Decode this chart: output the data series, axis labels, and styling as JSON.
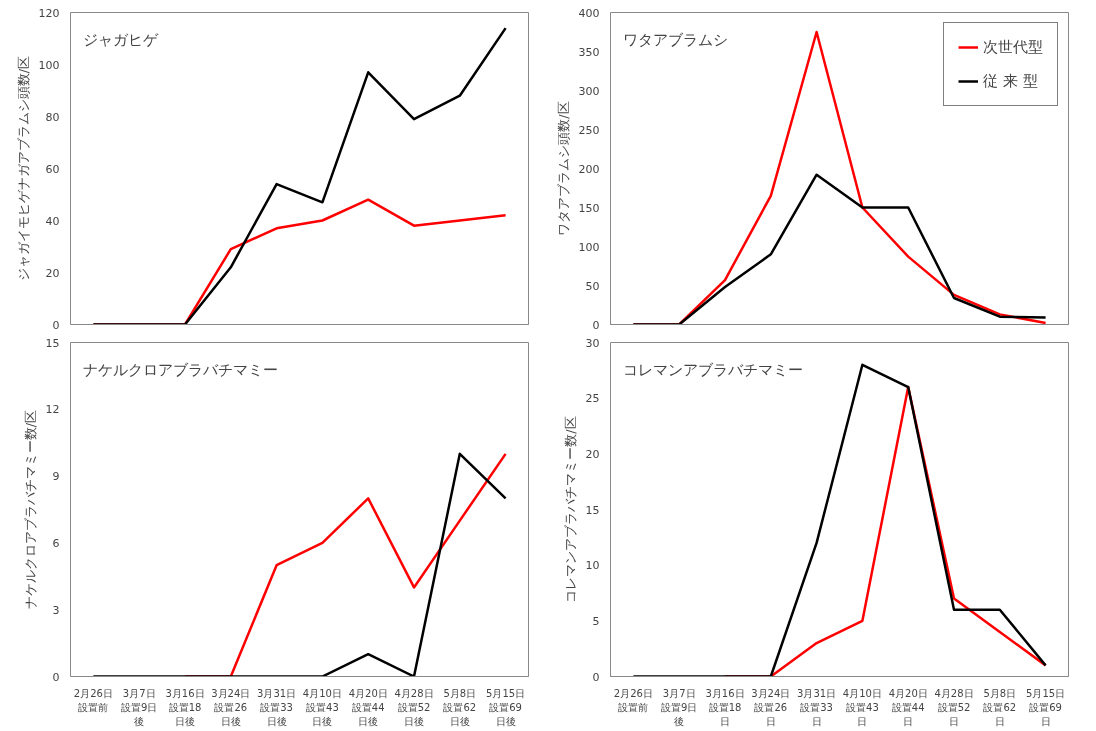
{
  "chart_data": [
    {
      "type": "line",
      "title": "ジャガヒゲ",
      "ylabel": "ジャガイモヒゲナガアブラムシ頭数/区",
      "grid": false,
      "legend": false,
      "ylim": [
        0,
        120
      ],
      "yticks": [
        0,
        20,
        40,
        60,
        80,
        100,
        120
      ],
      "categories": [
        null,
        null,
        null,
        null,
        null,
        null,
        null,
        null,
        null,
        null
      ],
      "series": [
        {
          "color": "#ff0000",
          "values": [
            0,
            0,
            0,
            29,
            37,
            40,
            48,
            38,
            40,
            42
          ]
        },
        {
          "color": "#000000",
          "values": [
            0,
            0,
            0,
            22,
            54,
            47,
            97,
            79,
            88,
            114
          ]
        }
      ]
    },
    {
      "type": "line",
      "title": "ワタアブラムシ",
      "ylabel": "ワタアブラムシ頭数/区",
      "grid": false,
      "legend": "top right",
      "ylim": [
        0,
        400
      ],
      "yticks": [
        0,
        50,
        100,
        150,
        200,
        250,
        300,
        350,
        400
      ],
      "categories": [
        null,
        null,
        null,
        null,
        null,
        null,
        null,
        null,
        null,
        null
      ],
      "series": [
        {
          "name": "次世代型",
          "color": "#ff0000",
          "values": [
            0,
            0,
            57,
            165,
            375,
            150,
            87,
            38,
            13,
            2
          ]
        },
        {
          "name": "従 来 型",
          "color": "#000000",
          "values": [
            0,
            0,
            48,
            90,
            192,
            150,
            150,
            34,
            10,
            9
          ]
        }
      ]
    },
    {
      "type": "line",
      "title": "ナケルクロアブラバチマミー",
      "ylabel": "ナケルクロアブラバチマミー数/区",
      "grid": false,
      "legend": false,
      "ylim": [
        0,
        15
      ],
      "yticks": [
        0,
        3,
        6,
        9,
        12,
        15
      ],
      "categories": [
        "2月26日設置前",
        "3月7日設置9日後",
        "3月16日設置18日後",
        "3月24日設置26日後",
        "3月31日設置33日後",
        "4月10日設置43日後",
        "4月20日設置44日後",
        "4月28日設置52日後",
        "5月8日設置62日後",
        "5月15日設置69日後"
      ],
      "series": [
        {
          "color": "#ff0000",
          "values": [
            null,
            null,
            0,
            0,
            5,
            6,
            8,
            4,
            7,
            10
          ]
        },
        {
          "color": "#000000",
          "values": [
            0,
            0,
            0,
            0,
            0,
            0,
            1,
            0,
            10,
            8
          ]
        }
      ]
    },
    {
      "type": "line",
      "title": "コレマンアブラバチマミー",
      "ylabel": "コレマンアブラバチマミー数/区",
      "grid": false,
      "legend": false,
      "ylim": [
        0,
        30
      ],
      "yticks": [
        0,
        5,
        10,
        15,
        20,
        25,
        30
      ],
      "categories": [
        "2月26日設置前",
        "3月7日設置9日後",
        "3月16日設置18日",
        "3月24日設置26日",
        "3月31日設置33日",
        "4月10日設置43日",
        "4月20日設置44日",
        "4月28日設置52日",
        "5月8日設置62日",
        "5月15日設置69日"
      ],
      "series": [
        {
          "color": "#ff0000",
          "values": [
            null,
            null,
            0,
            0,
            3,
            5,
            26,
            7,
            4,
            1
          ]
        },
        {
          "color": "#000000",
          "values": [
            0,
            0,
            0,
            0,
            12,
            28,
            26,
            6,
            6,
            1
          ]
        }
      ]
    }
  ]
}
